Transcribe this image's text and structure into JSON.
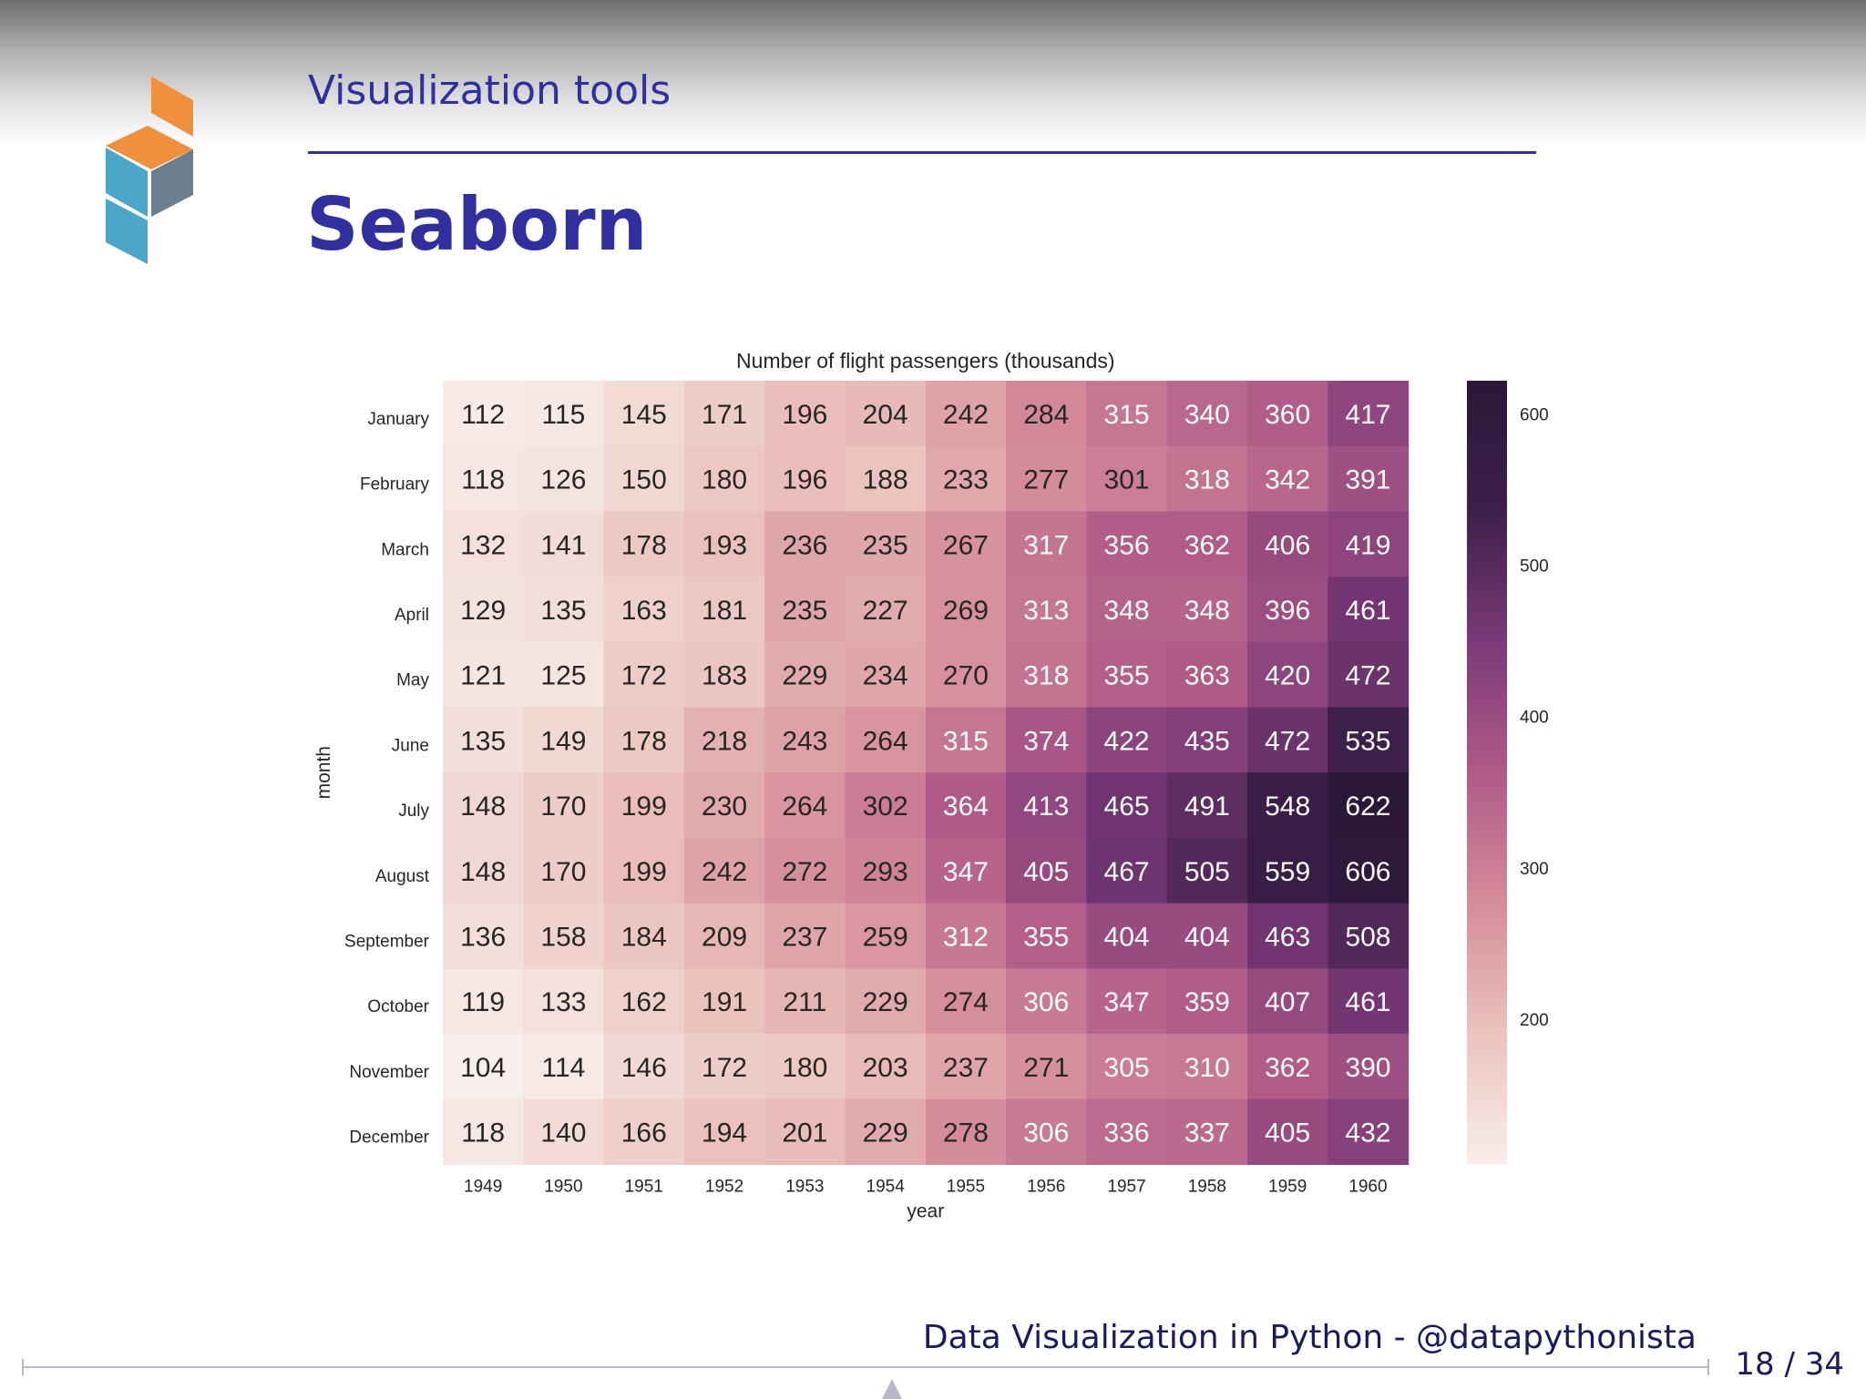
{
  "slide": {
    "section": "Visualization tools",
    "title": "Seaborn",
    "footer": "Data Visualization in Python - @datapythonista",
    "page_current": "18",
    "page_separator": "/",
    "page_total": "34",
    "accent_color": "#2f2fa0"
  },
  "logo": {
    "colors": [
      "#f0903c",
      "#4ba6c8",
      "#6a7e8c"
    ]
  },
  "chart_data": {
    "type": "heatmap",
    "title": "Number of flight passengers (thousands)",
    "xlabel": "year",
    "ylabel": "month",
    "x": [
      "1949",
      "1950",
      "1951",
      "1952",
      "1953",
      "1954",
      "1955",
      "1956",
      "1957",
      "1958",
      "1959",
      "1960"
    ],
    "y": [
      "January",
      "February",
      "March",
      "April",
      "May",
      "June",
      "July",
      "August",
      "September",
      "October",
      "November",
      "December"
    ],
    "values": [
      [
        112,
        115,
        145,
        171,
        196,
        204,
        242,
        284,
        315,
        340,
        360,
        417
      ],
      [
        118,
        126,
        150,
        180,
        196,
        188,
        233,
        277,
        301,
        318,
        342,
        391
      ],
      [
        132,
        141,
        178,
        193,
        236,
        235,
        267,
        317,
        356,
        362,
        406,
        419
      ],
      [
        129,
        135,
        163,
        181,
        235,
        227,
        269,
        313,
        348,
        348,
        396,
        461
      ],
      [
        121,
        125,
        172,
        183,
        229,
        234,
        270,
        318,
        355,
        363,
        420,
        472
      ],
      [
        135,
        149,
        178,
        218,
        243,
        264,
        315,
        374,
        422,
        435,
        472,
        535
      ],
      [
        148,
        170,
        199,
        230,
        264,
        302,
        364,
        413,
        465,
        491,
        548,
        622
      ],
      [
        148,
        170,
        199,
        242,
        272,
        293,
        347,
        405,
        467,
        505,
        559,
        606
      ],
      [
        136,
        158,
        184,
        209,
        237,
        259,
        312,
        355,
        404,
        404,
        463,
        508
      ],
      [
        119,
        133,
        162,
        191,
        211,
        229,
        274,
        306,
        347,
        359,
        407,
        461
      ],
      [
        104,
        114,
        146,
        172,
        180,
        203,
        237,
        271,
        305,
        310,
        362,
        390
      ],
      [
        118,
        140,
        166,
        194,
        201,
        229,
        278,
        306,
        336,
        337,
        405,
        432
      ]
    ],
    "annotated": true,
    "colorbar": {
      "ticks": [
        200,
        300,
        400,
        500,
        600
      ],
      "range": [
        104,
        622
      ],
      "colormap": [
        "#f8eeeb",
        "#ebc3bd",
        "#d58c9a",
        "#b05a88",
        "#7b3a78",
        "#3d1f4b",
        "#2b1838"
      ]
    },
    "grid": false
  }
}
